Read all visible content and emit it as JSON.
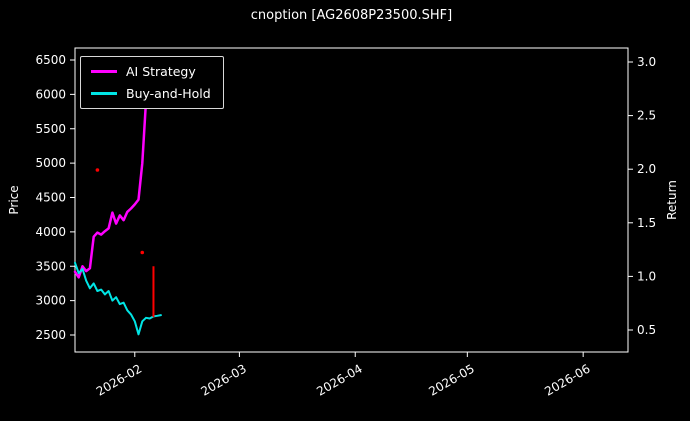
{
  "chart_data": {
    "type": "line",
    "title": "cnoption [AG2608P23500.SHF]",
    "background": "#000000",
    "text_color": "#ffffff",
    "grid": false,
    "axes": {
      "x": {
        "range": [
          "2026-01-16",
          "2026-06-13"
        ],
        "ticks": [
          {
            "value": "2026-02-01",
            "label": "2026-02"
          },
          {
            "value": "2026-03-01",
            "label": "2026-03"
          },
          {
            "value": "2026-04-01",
            "label": "2026-04"
          },
          {
            "value": "2026-05-01",
            "label": "2026-05"
          },
          {
            "value": "2026-06-01",
            "label": "2026-06"
          }
        ]
      },
      "y_left": {
        "label": "Price",
        "ticks": [
          2500,
          3000,
          3500,
          4000,
          4500,
          5000,
          5500,
          6000,
          6500
        ],
        "range": [
          2250,
          6680
        ]
      },
      "y_right": {
        "label": "Return",
        "ticks": [
          0.5,
          1.0,
          1.5,
          2.0,
          2.5,
          3.0
        ],
        "range": [
          0.3,
          3.1
        ]
      }
    },
    "legend": {
      "position": "upper-left",
      "items": [
        {
          "label": "AI Strategy",
          "color": "#ff00ff"
        },
        {
          "label": "Buy-and-Hold",
          "color": "#00e5e5"
        }
      ]
    },
    "series": [
      {
        "name": "AI Strategy",
        "color": "#ff00ff",
        "width": 2.5,
        "axis": "left",
        "points": [
          [
            "2026-01-16",
            3420
          ],
          [
            "2026-01-17",
            3340
          ],
          [
            "2026-01-18",
            3500
          ],
          [
            "2026-01-19",
            3430
          ],
          [
            "2026-01-20",
            3470
          ],
          [
            "2026-01-21",
            3930
          ],
          [
            "2026-01-22",
            3990
          ],
          [
            "2026-01-23",
            3960
          ],
          [
            "2026-01-24",
            4010
          ],
          [
            "2026-01-25",
            4050
          ],
          [
            "2026-01-26",
            4280
          ],
          [
            "2026-01-27",
            4120
          ],
          [
            "2026-01-28",
            4240
          ],
          [
            "2026-01-29",
            4170
          ],
          [
            "2026-01-30",
            4290
          ],
          [
            "2026-01-31",
            4340
          ],
          [
            "2026-02-01",
            4400
          ],
          [
            "2026-02-02",
            4470
          ],
          [
            "2026-02-03",
            5000
          ],
          [
            "2026-02-04",
            5900
          ],
          [
            "2026-02-05",
            6420
          ]
        ]
      },
      {
        "name": "Buy-and-Hold",
        "color": "#00e5e5",
        "width": 2,
        "axis": "left",
        "points": [
          [
            "2026-01-16",
            3550
          ],
          [
            "2026-01-17",
            3400
          ],
          [
            "2026-01-18",
            3460
          ],
          [
            "2026-01-19",
            3290
          ],
          [
            "2026-01-20",
            3180
          ],
          [
            "2026-01-21",
            3250
          ],
          [
            "2026-01-22",
            3140
          ],
          [
            "2026-01-23",
            3160
          ],
          [
            "2026-01-24",
            3090
          ],
          [
            "2026-01-25",
            3140
          ],
          [
            "2026-01-26",
            3000
          ],
          [
            "2026-01-27",
            3050
          ],
          [
            "2026-01-28",
            2950
          ],
          [
            "2026-01-29",
            2970
          ],
          [
            "2026-01-30",
            2860
          ],
          [
            "2026-01-31",
            2800
          ],
          [
            "2026-02-01",
            2700
          ],
          [
            "2026-02-02",
            2510
          ],
          [
            "2026-02-03",
            2700
          ],
          [
            "2026-02-04",
            2750
          ],
          [
            "2026-02-05",
            2740
          ],
          [
            "2026-02-06",
            2770
          ],
          [
            "2026-02-07",
            2780
          ],
          [
            "2026-02-08",
            2790
          ]
        ]
      }
    ],
    "annotations": [
      {
        "type": "segment",
        "x": "2026-02-06",
        "y1": 2760,
        "y2": 3500,
        "color": "#ff0000"
      },
      {
        "type": "point",
        "x": "2026-01-22",
        "y": 4900,
        "color": "#ff0000"
      },
      {
        "type": "point",
        "x": "2026-02-03",
        "y": 3700,
        "color": "#ff0000"
      }
    ]
  }
}
